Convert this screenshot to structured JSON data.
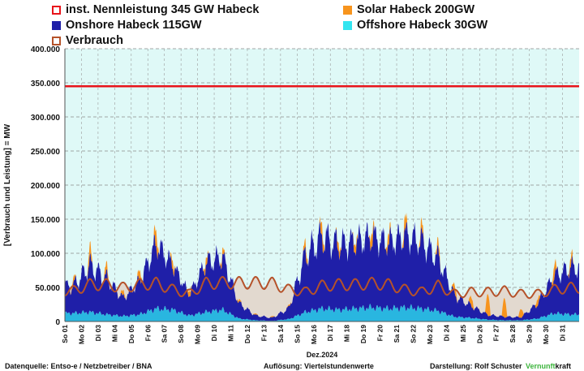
{
  "legend": [
    {
      "label": "inst. Nennleistung 345 GW Habeck",
      "color": "#e8141b",
      "kind": "outline"
    },
    {
      "label": "Solar Habeck 200GW",
      "color": "#f7941d",
      "kind": "fill"
    },
    {
      "label": "Onshore Habeck 115GW",
      "color": "#1f1fa8",
      "kind": "fill"
    },
    {
      "label": "Offshore Habeck 30GW",
      "color": "#33e5f0",
      "kind": "fill"
    },
    {
      "label": "Verbrauch",
      "color": "#b5522a",
      "kind": "outline"
    }
  ],
  "footer": {
    "source": "Datenquelle: Entso-e  / Netzbetreiber / BNA",
    "resolution": "Auflösung: Viertelstundenwerte",
    "author": "Darstellung:   Rolf Schuster",
    "brand_part1": "Vernunft",
    "brand_part2": "kraft"
  },
  "chart_data": {
    "type": "area",
    "ylabel": "[Verbrauch und Leistung] = MW",
    "xlabel": "Dez.2024",
    "ylim": [
      0,
      400000
    ],
    "yticks": [
      "0",
      "50.000",
      "100.000",
      "150.000",
      "200.000",
      "250.000",
      "300.000",
      "350.000",
      "400.000"
    ],
    "categories": [
      "So 01",
      "Mo 02",
      "Di 03",
      "Mi 04",
      "Do 05",
      "Fr 06",
      "Sa 07",
      "So 08",
      "Mo 09",
      "Di 10",
      "Mi 11",
      "Do 12",
      "Fr 13",
      "Sa 14",
      "So 15",
      "Mo 16",
      "Di 17",
      "Mi 18",
      "Do 19",
      "Fr 20",
      "Sa 21",
      "So 22",
      "Mo 23",
      "Di 24",
      "Mi 25",
      "Do 26",
      "Fr 27",
      "Sa 28",
      "So 29",
      "Mo 30",
      "Di 31"
    ],
    "capacity_line": 345000,
    "grid": true,
    "series": [
      {
        "name": "Offshore Habeck 30GW",
        "color": "#29b6e0",
        "values": [
          14000,
          16000,
          12000,
          9000,
          12000,
          22000,
          20000,
          10000,
          16000,
          20000,
          5000,
          2000,
          1000,
          4000,
          16000,
          22000,
          20000,
          22000,
          24000,
          22000,
          24000,
          22000,
          18000,
          8000,
          6000,
          3000,
          2000,
          2000,
          5000,
          14000,
          12000
        ]
      },
      {
        "name": "Onshore Habeck 115GW",
        "color": "#1f1fa8",
        "values": [
          45000,
          78000,
          60000,
          30000,
          55000,
          108000,
          75000,
          35000,
          82000,
          88000,
          25000,
          8000,
          5000,
          18000,
          95000,
          120000,
          108000,
          112000,
          118000,
          110000,
          120000,
          112000,
          88000,
          35000,
          20000,
          8000,
          6000,
          5000,
          25000,
          62000,
          78000
        ]
      },
      {
        "name": "Solar Habeck 200GW",
        "color": "#f7941d",
        "values": [
          5000,
          12000,
          8000,
          4000,
          8000,
          15000,
          8000,
          5000,
          7000,
          6000,
          2000,
          1000,
          1000,
          1000,
          8000,
          12000,
          8000,
          8000,
          12000,
          10000,
          12000,
          9000,
          8000,
          7000,
          8000,
          20000,
          18000,
          8000,
          6000,
          12000,
          8000
        ]
      },
      {
        "name": "Verbrauch",
        "color": "#b5522a",
        "values": [
          50000,
          60000,
          60000,
          55000,
          60000,
          62000,
          52000,
          45000,
          62000,
          63000,
          63000,
          63000,
          62000,
          52000,
          48000,
          58000,
          60000,
          60000,
          62000,
          60000,
          52000,
          48000,
          58000,
          45000,
          48000,
          48000,
          50000,
          45000,
          45000,
          52000,
          55000
        ]
      }
    ]
  }
}
